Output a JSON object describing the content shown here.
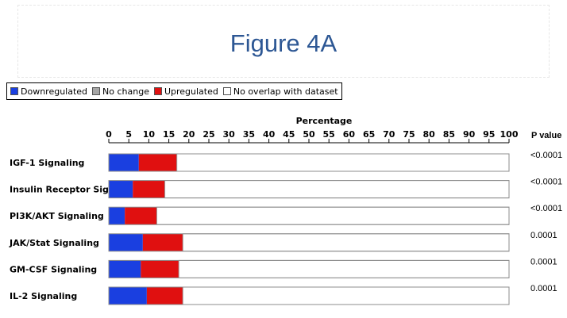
{
  "slide": {
    "title": "Figure 4A"
  },
  "legend": [
    {
      "label": "Downregulated",
      "color": "#1a3fe0"
    },
    {
      "label": "No change",
      "color": "#a6a6a6"
    },
    {
      "label": "Upregulated",
      "color": "#e01010"
    },
    {
      "label": "No overlap with dataset",
      "color": "#ffffff"
    }
  ],
  "chart_data": {
    "type": "bar",
    "orientation": "horizontal",
    "stacked": true,
    "xlabel": "Percentage",
    "xlim": [
      0,
      100
    ],
    "x_ticks": [
      0,
      5,
      10,
      15,
      20,
      25,
      30,
      35,
      40,
      45,
      50,
      55,
      60,
      65,
      70,
      75,
      80,
      85,
      90,
      95,
      100
    ],
    "categories": [
      "IGF-1 Signaling",
      "Insulin Receptor Signaling",
      "PI3K/AKT Signaling",
      "JAK/Stat Signaling",
      "GM-CSF Signaling",
      "IL-2 Signaling"
    ],
    "series": [
      {
        "name": "Downregulated",
        "color": "#1a3fe0",
        "values": [
          7.5,
          6,
          4,
          8.5,
          8,
          9.5
        ]
      },
      {
        "name": "No change",
        "color": "#a6a6a6",
        "values": [
          0,
          0,
          0,
          0,
          0,
          0
        ]
      },
      {
        "name": "Upregulated",
        "color": "#e01010",
        "values": [
          9.5,
          8,
          8,
          10,
          9.5,
          9
        ]
      },
      {
        "name": "No overlap with dataset",
        "color": "#ffffff",
        "values": [
          83,
          86,
          88,
          81.5,
          82.5,
          81.5
        ]
      }
    ],
    "pvalue_header": "P value",
    "pvalues": [
      "<0.0001",
      "<0.0001",
      "<0.0001",
      "0.0001",
      "0.0001",
      "0.0001"
    ]
  }
}
